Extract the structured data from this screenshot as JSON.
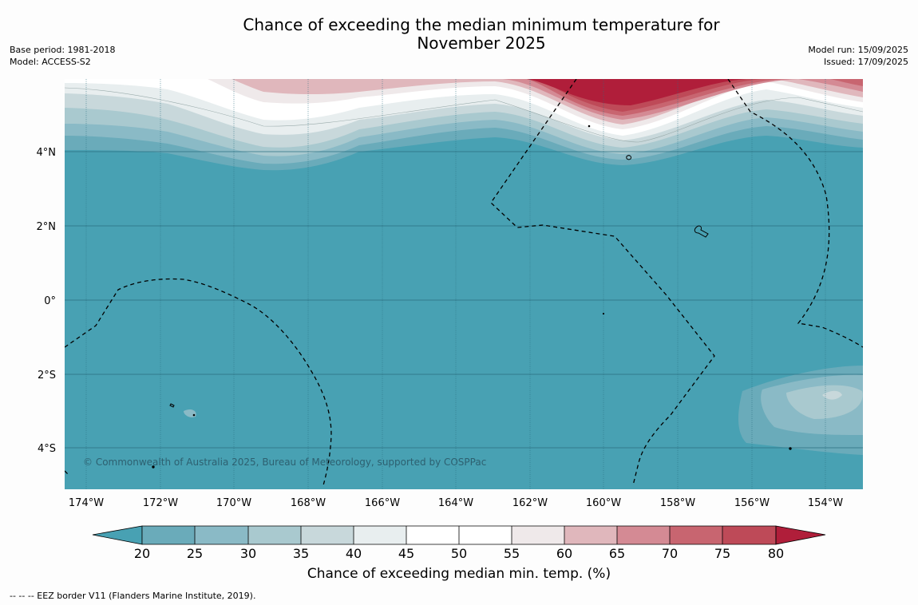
{
  "header": {
    "title_line1": "Chance of exceeding the median minimum temperature for",
    "title_line2": "November 2025",
    "base_period": "Base period: 1981-2018",
    "model": "Model: ACCESS-S2",
    "model_run": "Model run: 15/09/2025",
    "issued": "Issued: 17/09/2025"
  },
  "map": {
    "copyright": "© Commonwealth of Australia 2025, Bureau of Meteorology, supported by COSPPac",
    "latitude_labels": [
      "4°N",
      "2°N",
      "0°",
      "2°S",
      "4°S"
    ],
    "longitude_labels": [
      "174°W",
      "172°W",
      "170°W",
      "168°W",
      "166°W",
      "164°W",
      "162°W",
      "160°W",
      "158°W",
      "156°W",
      "154°W"
    ],
    "background_color": "#48a1b3"
  },
  "colorbar": {
    "title": "Chance of exceeding median min. temp. (%)",
    "ticks": [
      "20",
      "25",
      "30",
      "35",
      "40",
      "45",
      "50",
      "55",
      "60",
      "65",
      "70",
      "75",
      "80"
    ],
    "colors": [
      "#48a1b3",
      "#6aabba",
      "#8abac6",
      "#a9c9cf",
      "#c8d8db",
      "#e8eeef",
      "#ffffff",
      "#ffffff",
      "#efe9ea",
      "#e0b7bc",
      "#d48a94",
      "#c86570",
      "#be4a58",
      "#b01e3a"
    ]
  },
  "footer": {
    "legend_text": "--  --  -- EEZ border V11 (Flanders Marine Institute, 2019)."
  }
}
